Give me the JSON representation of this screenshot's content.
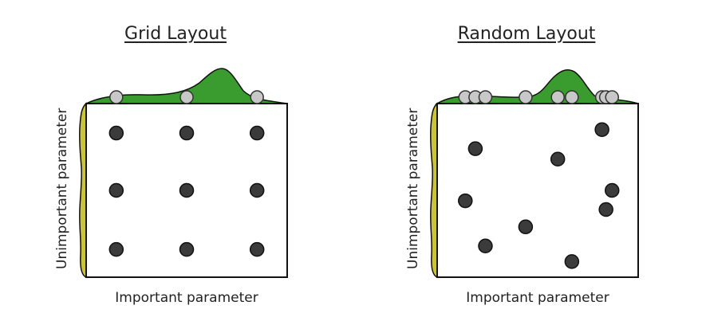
{
  "panels": [
    {
      "title": "Grid Layout",
      "xlabel": "Important parameter",
      "ylabel": "Unimportant parameter",
      "points": [
        [
          0.15,
          0.17
        ],
        [
          0.5,
          0.17
        ],
        [
          0.85,
          0.17
        ],
        [
          0.15,
          0.5
        ],
        [
          0.5,
          0.5
        ],
        [
          0.85,
          0.5
        ],
        [
          0.15,
          0.84
        ],
        [
          0.5,
          0.84
        ],
        [
          0.85,
          0.84
        ]
      ],
      "top_samples": [
        0.15,
        0.5,
        0.85
      ]
    },
    {
      "title": "Random Layout",
      "xlabel": "Important parameter",
      "ylabel": "Unimportant parameter",
      "points": [
        [
          0.82,
          0.15
        ],
        [
          0.19,
          0.26
        ],
        [
          0.6,
          0.32
        ],
        [
          0.87,
          0.5
        ],
        [
          0.14,
          0.56
        ],
        [
          0.84,
          0.61
        ],
        [
          0.44,
          0.71
        ],
        [
          0.24,
          0.82
        ],
        [
          0.67,
          0.91
        ]
      ],
      "top_samples": [
        0.14,
        0.19,
        0.24,
        0.44,
        0.6,
        0.67,
        0.82,
        0.84,
        0.87
      ]
    }
  ],
  "colors": {
    "important_fill": "#3a9c2e",
    "unimportant_fill": "#c9c43a",
    "point_fill": "#3b3b3b",
    "sample_fill": "#c8c8c8",
    "frame": "#111111"
  }
}
